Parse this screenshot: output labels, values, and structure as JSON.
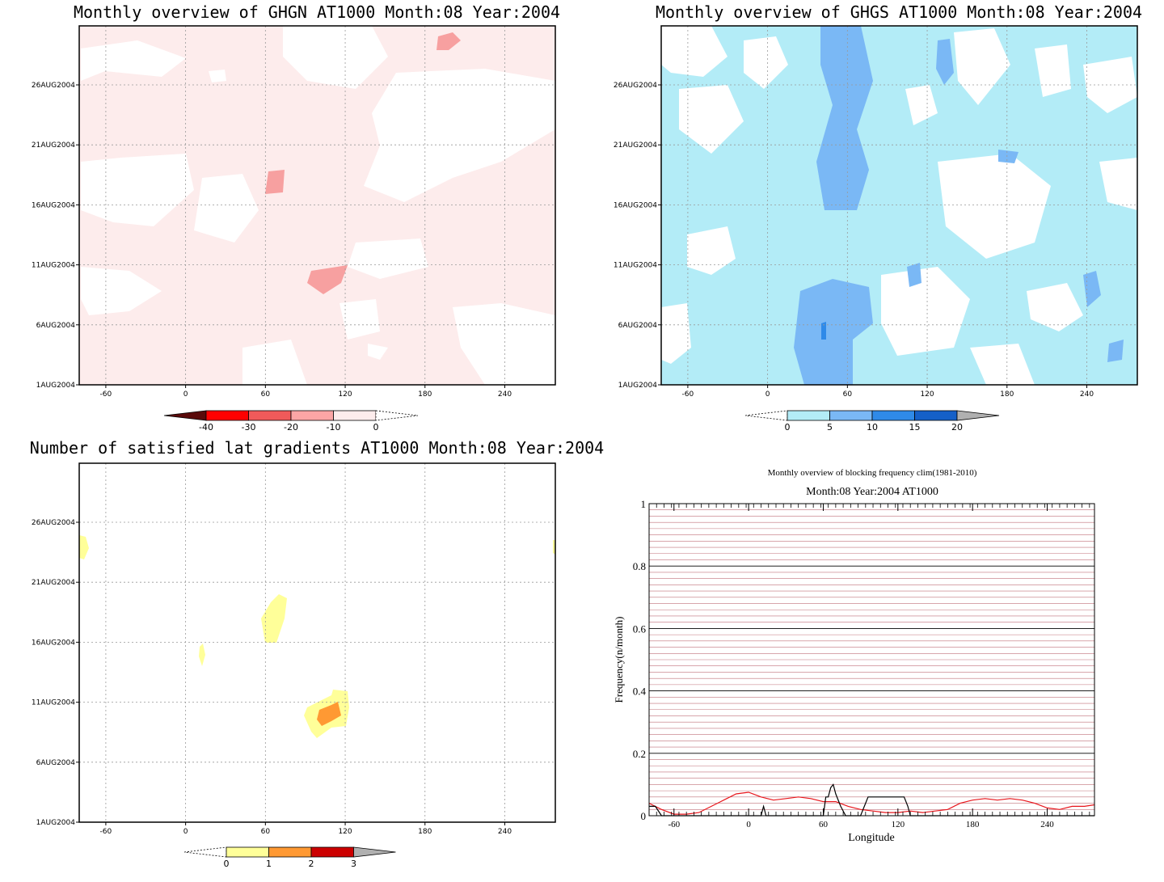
{
  "chart_data": [
    {
      "type": "heatmap",
      "title": "Monthly overview of GHGN AT1000 Month:08 Year:2004",
      "xticks": [
        "-60",
        "0",
        "60",
        "120",
        "180",
        "240"
      ],
      "yticks": [
        "1AUG2004",
        "6AUG2004",
        "11AUG2004",
        "16AUG2004",
        "21AUG2004",
        "26AUG2004"
      ],
      "xlim": [
        -80,
        278
      ],
      "colorbar": {
        "labels": [
          "-40",
          "-30",
          "-20",
          "-10",
          "0"
        ],
        "colors": [
          "#5a0a0a",
          "#ff0000",
          "#f05a5a",
          "#fca5a5",
          "#fdecec",
          "#ffffff"
        ]
      },
      "field_color": "#fdecec",
      "highlight_color": "#f7a0a0"
    },
    {
      "type": "heatmap",
      "title": "Monthly overview of GHGS AT1000 Month:08 Year:2004",
      "xticks": [
        "-60",
        "0",
        "60",
        "120",
        "180",
        "240"
      ],
      "yticks": [
        "1AUG2004",
        "6AUG2004",
        "11AUG2004",
        "16AUG2004",
        "21AUG2004",
        "26AUG2004"
      ],
      "xlim": [
        -80,
        278
      ],
      "colorbar": {
        "labels": [
          "0",
          "5",
          "10",
          "15",
          "20"
        ],
        "colors": [
          "#ffffff",
          "#b3ecf7",
          "#7ab8f5",
          "#2f8ae8",
          "#1560c8",
          "#b0b0b0"
        ]
      },
      "field_color": "#b3ecf7",
      "highlight_color": "#7ab8f5"
    },
    {
      "type": "heatmap",
      "title": "Number of satisfied lat gradients AT1000 Month:08 Year:2004",
      "xticks": [
        "-60",
        "0",
        "60",
        "120",
        "180",
        "240"
      ],
      "yticks": [
        "1AUG2004",
        "6AUG2004",
        "11AUG2004",
        "16AUG2004",
        "21AUG2004",
        "26AUG2004"
      ],
      "xlim": [
        -80,
        278
      ],
      "colorbar": {
        "labels": [
          "0",
          "1",
          "2",
          "3"
        ],
        "colors": [
          "#ffffff",
          "#ffff99",
          "#ff9933",
          "#cc0000",
          "#b0b0b0"
        ]
      },
      "field_color": "#ffff99",
      "highlight_color": "#ff9933"
    },
    {
      "type": "line",
      "title": "Monthly overview of blocking frequency clim(1981-2010)",
      "subtitle": "Month:08 Year:2004  AT1000",
      "xlabel": "Longitude",
      "ylabel": "Frequency(n/month)",
      "xlim": [
        -80,
        278
      ],
      "ylim": [
        0,
        1
      ],
      "xticks": [
        "-60",
        "0",
        "60",
        "120",
        "180",
        "240"
      ],
      "yticks": [
        "0",
        "0.2",
        "0.4",
        "0.6",
        "0.8",
        "1"
      ],
      "grid": true,
      "series": [
        {
          "color": "#e8151b",
          "x": [
            -80,
            -70,
            -60,
            -50,
            -40,
            -30,
            -20,
            -10,
            0,
            10,
            20,
            30,
            40,
            50,
            60,
            70,
            80,
            90,
            100,
            110,
            120,
            130,
            140,
            150,
            160,
            170,
            180,
            190,
            200,
            210,
            220,
            230,
            240,
            250,
            260,
            270,
            278
          ],
          "values": [
            0.04,
            0.02,
            0.005,
            0.005,
            0.01,
            0.03,
            0.05,
            0.07,
            0.075,
            0.06,
            0.05,
            0.055,
            0.06,
            0.055,
            0.045,
            0.045,
            0.03,
            0.02,
            0.015,
            0.01,
            0.01,
            0.015,
            0.01,
            0.015,
            0.02,
            0.04,
            0.05,
            0.055,
            0.05,
            0.055,
            0.05,
            0.04,
            0.025,
            0.02,
            0.03,
            0.03,
            0.035
          ]
        },
        {
          "color": "#000000",
          "x": [
            -80,
            -75,
            -70,
            -60,
            10,
            12,
            14,
            60,
            62,
            64,
            66,
            68,
            70,
            74,
            78,
            82,
            90,
            94,
            96,
            100,
            125,
            128,
            130,
            278
          ],
          "values": [
            0.03,
            0.03,
            0.0,
            0.0,
            0.0,
            0.03,
            0.0,
            0.0,
            0.06,
            0.06,
            0.09,
            0.1,
            0.07,
            0.03,
            0.0,
            0.0,
            0.0,
            0.04,
            0.06,
            0.06,
            0.06,
            0.03,
            0.0,
            0.0
          ]
        }
      ]
    }
  ]
}
